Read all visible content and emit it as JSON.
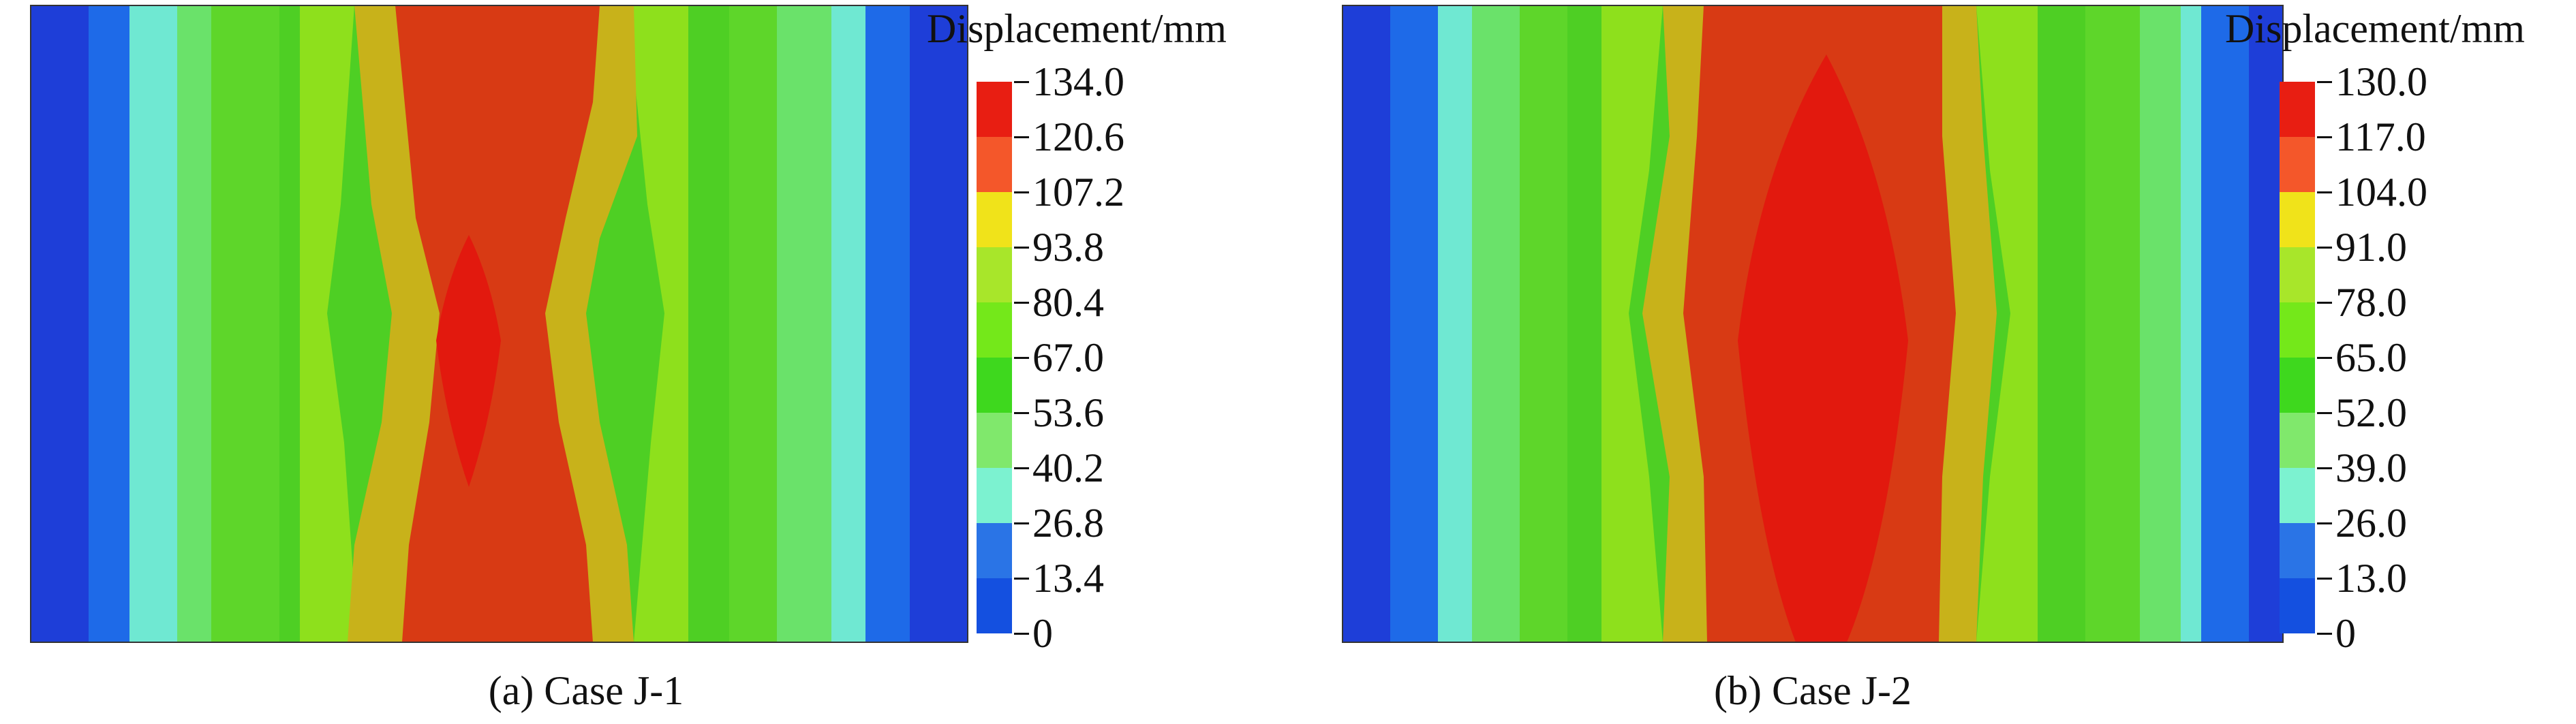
{
  "figures": [
    {
      "id": "a",
      "caption": "(a) Case J-1",
      "legend_title": "Displacement/mm",
      "legend_ticks": [
        "134.0",
        "120.6",
        "107.2",
        "93.8",
        "80.4",
        "67.0",
        "53.6",
        "40.2",
        "26.8",
        "13.4",
        "0"
      ],
      "legend_colors": [
        "#e81e12",
        "#f4572a",
        "#f0e31a",
        "#a8e62a",
        "#74e81a",
        "#3ed81e",
        "#80e86c",
        "#7cf2d0",
        "#2a74e6",
        "#1450e0"
      ]
    },
    {
      "id": "b",
      "caption": "(b) Case J-2",
      "legend_title": "Displacement/mm",
      "legend_ticks": [
        "130.0",
        "117.0",
        "104.0",
        "91.0",
        "78.0",
        "65.0",
        "52.0",
        "39.0",
        "26.0",
        "13.0",
        "0"
      ],
      "legend_colors": [
        "#e81e12",
        "#f4572a",
        "#f0e31a",
        "#a8e62a",
        "#74e81a",
        "#3ed81e",
        "#80e86c",
        "#7cf2d0",
        "#2a74e6",
        "#1450e0"
      ]
    }
  ]
}
